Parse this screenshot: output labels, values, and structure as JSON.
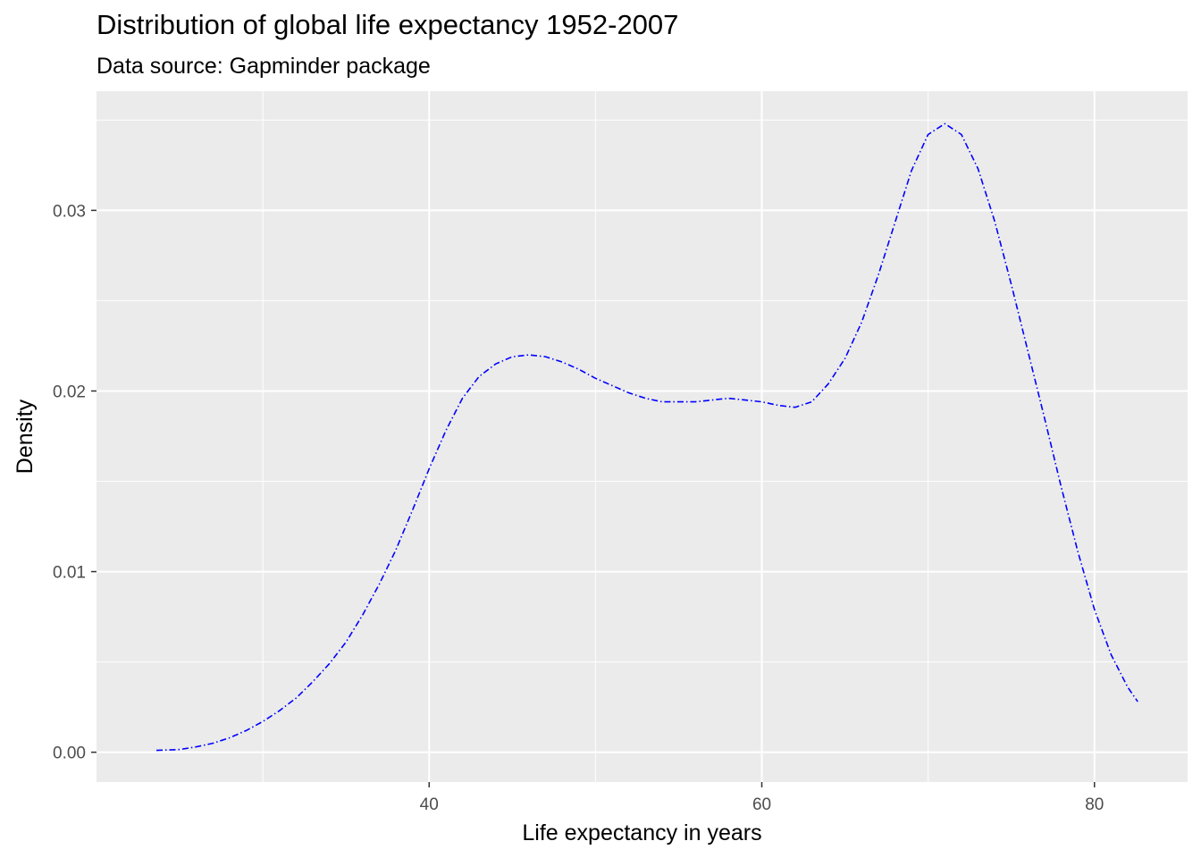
{
  "chart_data": {
    "type": "line",
    "title": "Distribution of global life expectancy 1952-2007",
    "subtitle": "Data source: Gapminder package",
    "xlabel": "Life expectancy in years",
    "ylabel": "Density",
    "xlim": [
      20.0,
      85.6
    ],
    "ylim": [
      -0.00165,
      0.0366
    ],
    "x_ticks": [
      40,
      60,
      80
    ],
    "x_tick_labels": [
      "40",
      "60",
      "80"
    ],
    "x_minor_ticks": [
      30,
      50,
      70
    ],
    "y_ticks": [
      0.0,
      0.01,
      0.02,
      0.03
    ],
    "y_tick_labels": [
      "0.00",
      "0.01",
      "0.02",
      "0.03"
    ],
    "y_minor_ticks": [
      0.005,
      0.015,
      0.025,
      0.035
    ],
    "grid": true,
    "legend": "none",
    "series": [
      {
        "color": "#0000ff",
        "line_style": "dotdash",
        "x": [
          23.6,
          25,
          26,
          27,
          28,
          29,
          30,
          31,
          32,
          33,
          34,
          35,
          36,
          37,
          38,
          39,
          40,
          41,
          42,
          43,
          44,
          45,
          46,
          47,
          48,
          49,
          50,
          51,
          52,
          53,
          54,
          55,
          56,
          57,
          58,
          59,
          60,
          61,
          62,
          63,
          64,
          65,
          66,
          67,
          68,
          69,
          70,
          71,
          72,
          73,
          74,
          75,
          76,
          77,
          78,
          79,
          80,
          81,
          82,
          82.6
        ],
        "y": [
          0.0001,
          0.00015,
          0.0003,
          0.0005,
          0.0008,
          0.0012,
          0.0017,
          0.0023,
          0.003,
          0.0039,
          0.0049,
          0.0061,
          0.0076,
          0.0093,
          0.0112,
          0.0134,
          0.0157,
          0.0178,
          0.0196,
          0.0208,
          0.0215,
          0.0219,
          0.022,
          0.0219,
          0.0216,
          0.0212,
          0.0207,
          0.0203,
          0.0199,
          0.0196,
          0.0194,
          0.0194,
          0.0194,
          0.0195,
          0.0196,
          0.0195,
          0.0194,
          0.0192,
          0.0191,
          0.0194,
          0.0204,
          0.0218,
          0.0238,
          0.0264,
          0.0293,
          0.0322,
          0.0342,
          0.0348,
          0.0342,
          0.0323,
          0.0294,
          0.0259,
          0.0222,
          0.0185,
          0.0147,
          0.0111,
          0.0079,
          0.0054,
          0.0036,
          0.0028
        ]
      }
    ]
  }
}
